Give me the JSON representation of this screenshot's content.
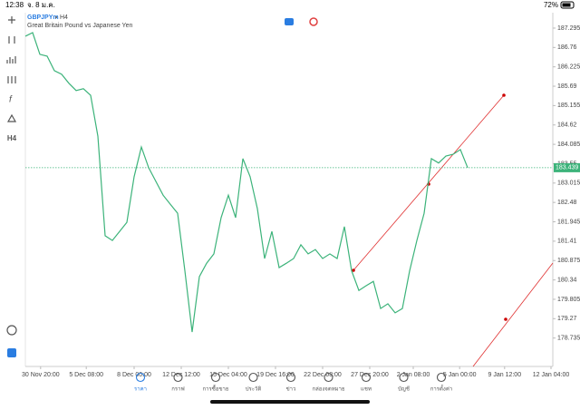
{
  "status_bar": {
    "time": "12:38",
    "date": "จ. 8 ม.ค.",
    "battery": "72%"
  },
  "chart_data": {
    "type": "line",
    "title": "GBPJPYm",
    "timeframe": "H4",
    "subtitle": "Great Britain Pound vs Japanese Yen",
    "color": "#3cb37a",
    "values": [
      187.07,
      187.17,
      186.57,
      186.52,
      186.12,
      186.02,
      185.77,
      185.57,
      185.62,
      185.44,
      184.31,
      181.56,
      181.43,
      181.68,
      181.93,
      183.19,
      184.01,
      183.44,
      183.06,
      182.68,
      182.43,
      182.18,
      180.59,
      178.9,
      180.43,
      180.8,
      181.06,
      182.06,
      182.68,
      182.06,
      183.69,
      183.19,
      182.31,
      180.93,
      181.68,
      180.68,
      180.8,
      180.93,
      181.31,
      181.06,
      181.18,
      180.93,
      181.06,
      180.93,
      181.81,
      180.59,
      180.05,
      180.18,
      180.3,
      179.55,
      179.68,
      179.43,
      179.55,
      180.59,
      181.43,
      182.18,
      183.69,
      183.57,
      183.76,
      183.81,
      183.94,
      183.44
    ],
    "last_price": 183.439,
    "ylim": [
      177.95,
      187.72
    ],
    "yticks": [
      187.295,
      186.76,
      186.225,
      185.69,
      185.155,
      184.62,
      184.085,
      183.55,
      183.015,
      182.48,
      181.945,
      181.41,
      180.875,
      180.34,
      179.805,
      179.27,
      178.735
    ],
    "xlim": [
      0,
      72.75
    ],
    "xticks": [
      {
        "value": 2.1,
        "label": "30 Nov 20:00"
      },
      {
        "value": 8.4,
        "label": "5 Dec 08:00"
      },
      {
        "value": 15,
        "label": "8 Dec 00:00"
      },
      {
        "value": 21.5,
        "label": "12 Dec 12:00"
      },
      {
        "value": 28,
        "label": "15 Dec 04:00"
      },
      {
        "value": 34.5,
        "label": "19 Dec 16:00"
      },
      {
        "value": 41,
        "label": "22 Dec 08:00"
      },
      {
        "value": 47.5,
        "label": "27 Dec 20:00"
      },
      {
        "value": 53.5,
        "label": "2 Jan 08:00"
      },
      {
        "value": 59.9,
        "label": "5 Jan 00:00"
      },
      {
        "value": 66.1,
        "label": "9 Jan 12:00"
      },
      {
        "value": 72.5,
        "label": "12 Jan 04:00"
      }
    ]
  },
  "tabs": [
    "ราคา",
    "กราฟ",
    "การซื้อขาย",
    "ประวัติ",
    "ข่าว",
    "กล่องจดหมาย",
    "แชท",
    "บัญชี",
    "การตั้งค่า"
  ]
}
